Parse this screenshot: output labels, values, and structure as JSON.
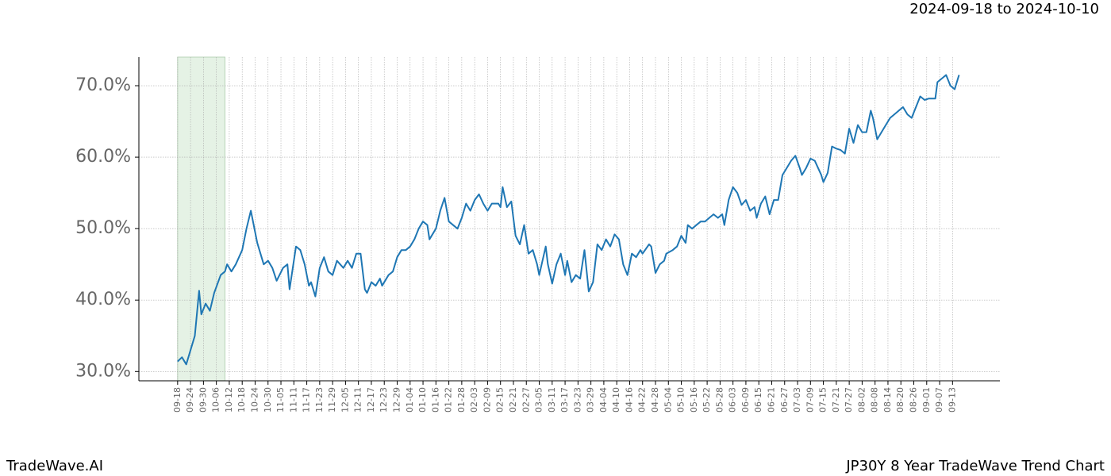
{
  "chart_data": {
    "type": "line",
    "header": "2024-09-18 to 2024-10-10",
    "footer_left": "TradeWave.AI",
    "footer_right": "JP30Y 8 Year TradeWave Trend Chart",
    "grid": true,
    "shaded_x": [
      0,
      22
    ],
    "shade_color": "#e5f2e5",
    "xlim": [
      -18,
      382
    ],
    "ylim": [
      28.7,
      74
    ],
    "yticks": [
      {
        "value": 30,
        "label": "30.0%"
      },
      {
        "value": 40,
        "label": "40.0%"
      },
      {
        "value": 50,
        "label": "50.0%"
      },
      {
        "value": 60,
        "label": "60.0%"
      },
      {
        "value": 70,
        "label": "70.0%"
      }
    ],
    "xticks": [
      {
        "value": 0,
        "label": "09-18"
      },
      {
        "value": 6,
        "label": "09-24"
      },
      {
        "value": 12,
        "label": "09-30"
      },
      {
        "value": 18,
        "label": "10-06"
      },
      {
        "value": 24,
        "label": "10-12"
      },
      {
        "value": 30,
        "label": "10-18"
      },
      {
        "value": 36,
        "label": "10-24"
      },
      {
        "value": 42,
        "label": "10-30"
      },
      {
        "value": 48,
        "label": "11-05"
      },
      {
        "value": 54,
        "label": "11-11"
      },
      {
        "value": 60,
        "label": "11-17"
      },
      {
        "value": 66,
        "label": "11-23"
      },
      {
        "value": 72,
        "label": "11-29"
      },
      {
        "value": 78,
        "label": "12-05"
      },
      {
        "value": 84,
        "label": "12-11"
      },
      {
        "value": 90,
        "label": "12-17"
      },
      {
        "value": 96,
        "label": "12-23"
      },
      {
        "value": 102,
        "label": "12-29"
      },
      {
        "value": 108,
        "label": "01-04"
      },
      {
        "value": 114,
        "label": "01-10"
      },
      {
        "value": 120,
        "label": "01-16"
      },
      {
        "value": 126,
        "label": "01-22"
      },
      {
        "value": 132,
        "label": "01-28"
      },
      {
        "value": 138,
        "label": "02-03"
      },
      {
        "value": 144,
        "label": "02-09"
      },
      {
        "value": 150,
        "label": "02-15"
      },
      {
        "value": 156,
        "label": "02-21"
      },
      {
        "value": 162,
        "label": "02-27"
      },
      {
        "value": 168,
        "label": "03-05"
      },
      {
        "value": 174,
        "label": "03-11"
      },
      {
        "value": 180,
        "label": "03-17"
      },
      {
        "value": 186,
        "label": "03-23"
      },
      {
        "value": 192,
        "label": "03-29"
      },
      {
        "value": 198,
        "label": "04-04"
      },
      {
        "value": 204,
        "label": "04-10"
      },
      {
        "value": 210,
        "label": "04-16"
      },
      {
        "value": 216,
        "label": "04-22"
      },
      {
        "value": 222,
        "label": "04-28"
      },
      {
        "value": 228,
        "label": "05-04"
      },
      {
        "value": 234,
        "label": "05-10"
      },
      {
        "value": 240,
        "label": "05-16"
      },
      {
        "value": 246,
        "label": "05-22"
      },
      {
        "value": 252,
        "label": "05-28"
      },
      {
        "value": 258,
        "label": "06-03"
      },
      {
        "value": 264,
        "label": "06-09"
      },
      {
        "value": 270,
        "label": "06-15"
      },
      {
        "value": 276,
        "label": "06-21"
      },
      {
        "value": 282,
        "label": "06-27"
      },
      {
        "value": 288,
        "label": "07-03"
      },
      {
        "value": 294,
        "label": "07-09"
      },
      {
        "value": 300,
        "label": "07-15"
      },
      {
        "value": 306,
        "label": "07-21"
      },
      {
        "value": 312,
        "label": "07-27"
      },
      {
        "value": 318,
        "label": "08-02"
      },
      {
        "value": 324,
        "label": "08-08"
      },
      {
        "value": 330,
        "label": "08-14"
      },
      {
        "value": 336,
        "label": "08-20"
      },
      {
        "value": 342,
        "label": "08-26"
      },
      {
        "value": 348,
        "label": "09-01"
      },
      {
        "value": 354,
        "label": "09-07"
      },
      {
        "value": 360,
        "label": "09-13"
      }
    ],
    "x": [
      0,
      2,
      4,
      8,
      10,
      11,
      13,
      15,
      17,
      20,
      22,
      23,
      25,
      27,
      30,
      32,
      34,
      37,
      40,
      42,
      44,
      46,
      49,
      51,
      52,
      55,
      57,
      59,
      61,
      62,
      64,
      66,
      68,
      70,
      72,
      74,
      77,
      79,
      81,
      83,
      85,
      87,
      88,
      90,
      92,
      94,
      95,
      98,
      100,
      102,
      104,
      106,
      108,
      110,
      112,
      114,
      116,
      117,
      120,
      122,
      124,
      126,
      128,
      130,
      132,
      134,
      136,
      138,
      140,
      142,
      144,
      146,
      149,
      150,
      151,
      153,
      155,
      157,
      159,
      161,
      163,
      165,
      167,
      168,
      171,
      172,
      174,
      176,
      178,
      180,
      181,
      183,
      185,
      187,
      189,
      191,
      193,
      195,
      197,
      199,
      201,
      203,
      205,
      207,
      209,
      211,
      213,
      215,
      216,
      219,
      220,
      222,
      224,
      226,
      227,
      230,
      232,
      234,
      236,
      237,
      239,
      241,
      243,
      245,
      247,
      249,
      251,
      253,
      254,
      256,
      258,
      260,
      262,
      264,
      266,
      268,
      269,
      271,
      273,
      275,
      277,
      279,
      281,
      283,
      285,
      287,
      289,
      290,
      292,
      294,
      296,
      299,
      300,
      302,
      304,
      306,
      308,
      310,
      312,
      314,
      316,
      318,
      320,
      322,
      323,
      325,
      327,
      329,
      331,
      333,
      335,
      337,
      339,
      341,
      343,
      345,
      347,
      349,
      352,
      353,
      355,
      357,
      359,
      361,
      363
    ],
    "series": [
      {
        "color": "#1f77b4",
        "values": [
          31.4,
          32.0,
          31.0,
          35,
          41.3,
          38,
          39.5,
          38.5,
          41,
          43.5,
          44,
          45,
          44,
          45,
          47,
          50,
          52.5,
          48,
          45,
          45.5,
          44.5,
          42.7,
          44.5,
          45,
          41.5,
          47.5,
          47,
          45,
          42,
          42.5,
          40.5,
          44.5,
          46,
          44,
          43.5,
          45.5,
          44.5,
          45.5,
          44.5,
          46.5,
          46.5,
          41.5,
          41,
          42.5,
          42,
          43,
          42,
          43.5,
          44,
          46,
          47,
          47,
          47.5,
          48.5,
          50,
          51,
          50.5,
          48.5,
          50,
          52.5,
          54.3,
          51,
          50.5,
          50,
          51.5,
          53.5,
          52.5,
          54,
          54.8,
          53.5,
          52.5,
          53.5,
          53.5,
          53,
          55.8,
          53,
          53.8,
          49,
          47.8,
          50.5,
          46.5,
          47,
          45,
          43.5,
          47.5,
          45,
          42.3,
          45,
          46.5,
          43.5,
          45.5,
          42.5,
          43.5,
          43,
          47,
          41.2,
          42.5,
          47.8,
          47,
          48.5,
          47.5,
          49.2,
          48.5,
          45,
          43.5,
          46.5,
          46,
          47,
          46.5,
          47.8,
          47.5,
          43.8,
          45,
          45.5,
          46.5,
          47,
          47.5,
          49,
          48,
          50.5,
          50,
          50.5,
          51,
          51,
          51.5,
          52,
          51.5,
          52,
          50.5,
          54,
          55.8,
          55,
          53.3,
          54,
          52.5,
          53,
          51.5,
          53.5,
          54.5,
          52,
          54,
          54,
          57.5,
          58.5,
          59.5,
          60.2,
          58.5,
          57.5,
          58.5,
          59.8,
          59.5,
          57.5,
          56.5,
          57.8,
          61.5,
          61.2,
          61,
          60.5,
          64,
          62,
          64.5,
          63.5,
          63.5,
          66.5,
          65.5,
          62.5,
          63.5,
          64.5,
          65.5,
          66,
          66.5,
          67,
          66,
          65.5,
          67,
          68.5,
          68,
          68.2,
          68.2,
          70.5,
          71,
          71.5,
          70,
          69.5,
          71.5
        ]
      }
    ]
  }
}
